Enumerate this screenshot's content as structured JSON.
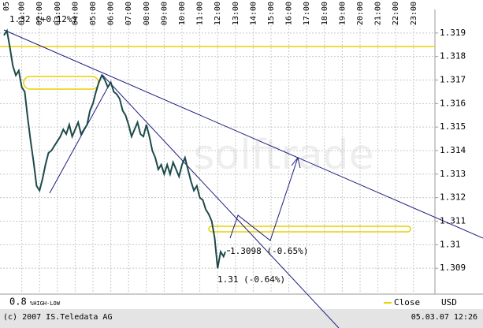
{
  "chart_data": {
    "type": "line",
    "x": [
      "00:00",
      "00:10",
      "00:20",
      "00:30",
      "00:40",
      "00:50",
      "01:00",
      "01:10",
      "01:20",
      "01:30",
      "01:40",
      "01:50",
      "02:00",
      "02:10",
      "02:20",
      "02:30",
      "02:40",
      "02:50",
      "03:00",
      "03:10",
      "03:20",
      "03:30",
      "03:40",
      "03:50",
      "04:00",
      "04:10",
      "04:20",
      "04:30",
      "04:40",
      "04:50",
      "05:00",
      "05:10",
      "05:20",
      "05:30",
      "05:40",
      "05:50",
      "06:00",
      "06:10",
      "06:20",
      "06:30",
      "06:40",
      "06:50",
      "07:00",
      "07:10",
      "07:20",
      "07:30",
      "07:40",
      "07:50",
      "08:00",
      "08:10",
      "08:20",
      "08:30",
      "08:40",
      "08:50",
      "09:00",
      "09:10",
      "09:20",
      "09:30",
      "09:40",
      "09:50",
      "10:00",
      "10:10",
      "10:20",
      "10:30",
      "10:40",
      "10:50",
      "11:00",
      "11:10",
      "11:20",
      "11:30",
      "11:40",
      "11:50",
      "12:00",
      "12:10",
      "12:20",
      "12:26"
    ],
    "series": [
      {
        "name": "Close",
        "color": "#1d4a4a",
        "values": [
          1.3189,
          1.3191,
          1.3184,
          1.3176,
          1.3172,
          1.3174,
          1.3167,
          1.3165,
          1.3154,
          1.3144,
          1.3135,
          1.3125,
          1.3123,
          1.3128,
          1.3134,
          1.3139,
          1.314,
          1.3142,
          1.3144,
          1.3146,
          1.3149,
          1.3147,
          1.3151,
          1.3146,
          1.3149,
          1.3152,
          1.3147,
          1.3149,
          1.3151,
          1.3157,
          1.316,
          1.3165,
          1.3169,
          1.3172,
          1.317,
          1.3167,
          1.3169,
          1.3165,
          1.3164,
          1.3162,
          1.3157,
          1.3155,
          1.3151,
          1.3146,
          1.3149,
          1.3152,
          1.3147,
          1.3146,
          1.3151,
          1.3146,
          1.314,
          1.3137,
          1.3132,
          1.3134,
          1.313,
          1.3134,
          1.313,
          1.3135,
          1.3132,
          1.3129,
          1.3134,
          1.3137,
          1.3132,
          1.3127,
          1.3123,
          1.3125,
          1.312,
          1.3119,
          1.3115,
          1.3113,
          1.311,
          1.3103,
          1.309,
          1.3097,
          1.3095,
          1.3097
        ]
      }
    ],
    "legend_color": "#e8d000",
    "xticks": [
      "05",
      "01:00",
      "02:00",
      "03:00",
      "04:00",
      "05:00",
      "06:00",
      "07:00",
      "08:00",
      "09:00",
      "10:00",
      "11:00",
      "12:00",
      "13:00",
      "14:00",
      "15:00",
      "16:00",
      "17:00",
      "18:00",
      "19:00",
      "20:00",
      "21:00",
      "22:00",
      "23:00"
    ],
    "ylim": [
      1.3079,
      1.32
    ],
    "yticks": [
      1.319,
      1.318,
      1.317,
      1.316,
      1.315,
      1.314,
      1.313,
      1.312,
      1.311,
      1.31,
      1.309
    ],
    "grid": true,
    "annotations": [
      "1.32 (+0.12%)",
      "1.3098 (-0.65%)",
      "1.31 (-0.64%)"
    ],
    "watermark": "solftrade",
    "scale_value": "0.8",
    "scale_label": "%HIGH-LOW",
    "currency": "USD",
    "copyright": "(c) 2007 IS.Teledata AG",
    "timestamp": "05.03.07 12:26"
  }
}
